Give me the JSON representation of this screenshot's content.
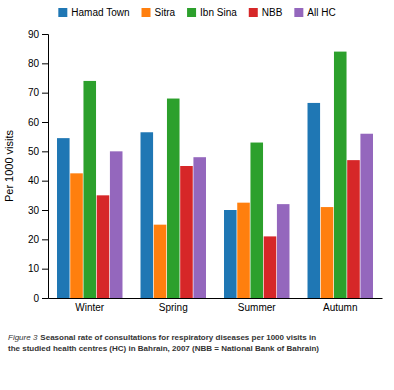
{
  "chart_data": {
    "type": "bar",
    "categories": [
      "Winter",
      "Spring",
      "Summer",
      "Autumn"
    ],
    "series": [
      {
        "name": "Hamad Town",
        "values": [
          54.5,
          56.5,
          30,
          66.5
        ]
      },
      {
        "name": "Sitra",
        "values": [
          42.5,
          25,
          32.5,
          31
        ]
      },
      {
        "name": "Ibn Sina",
        "values": [
          74,
          68,
          53,
          84
        ]
      },
      {
        "name": "NBB",
        "values": [
          35,
          45,
          21,
          47
        ]
      },
      {
        "name": "All HC",
        "values": [
          50,
          48,
          32,
          56
        ]
      }
    ],
    "ylabel": "Per 1000 visits",
    "ylim": [
      0,
      90
    ],
    "yticks": [
      0,
      10,
      20,
      30,
      40,
      50,
      60,
      70,
      80,
      90
    ],
    "grid": false,
    "legend": "top",
    "annotations": [
      "Figure 3",
      "Seasonal rate of consultations for respiratory diseases per 1000 visits in",
      "the studied health centres (HC) in Bahrain, 2007 (NBB = National Bank of Bahrain)"
    ]
  }
}
